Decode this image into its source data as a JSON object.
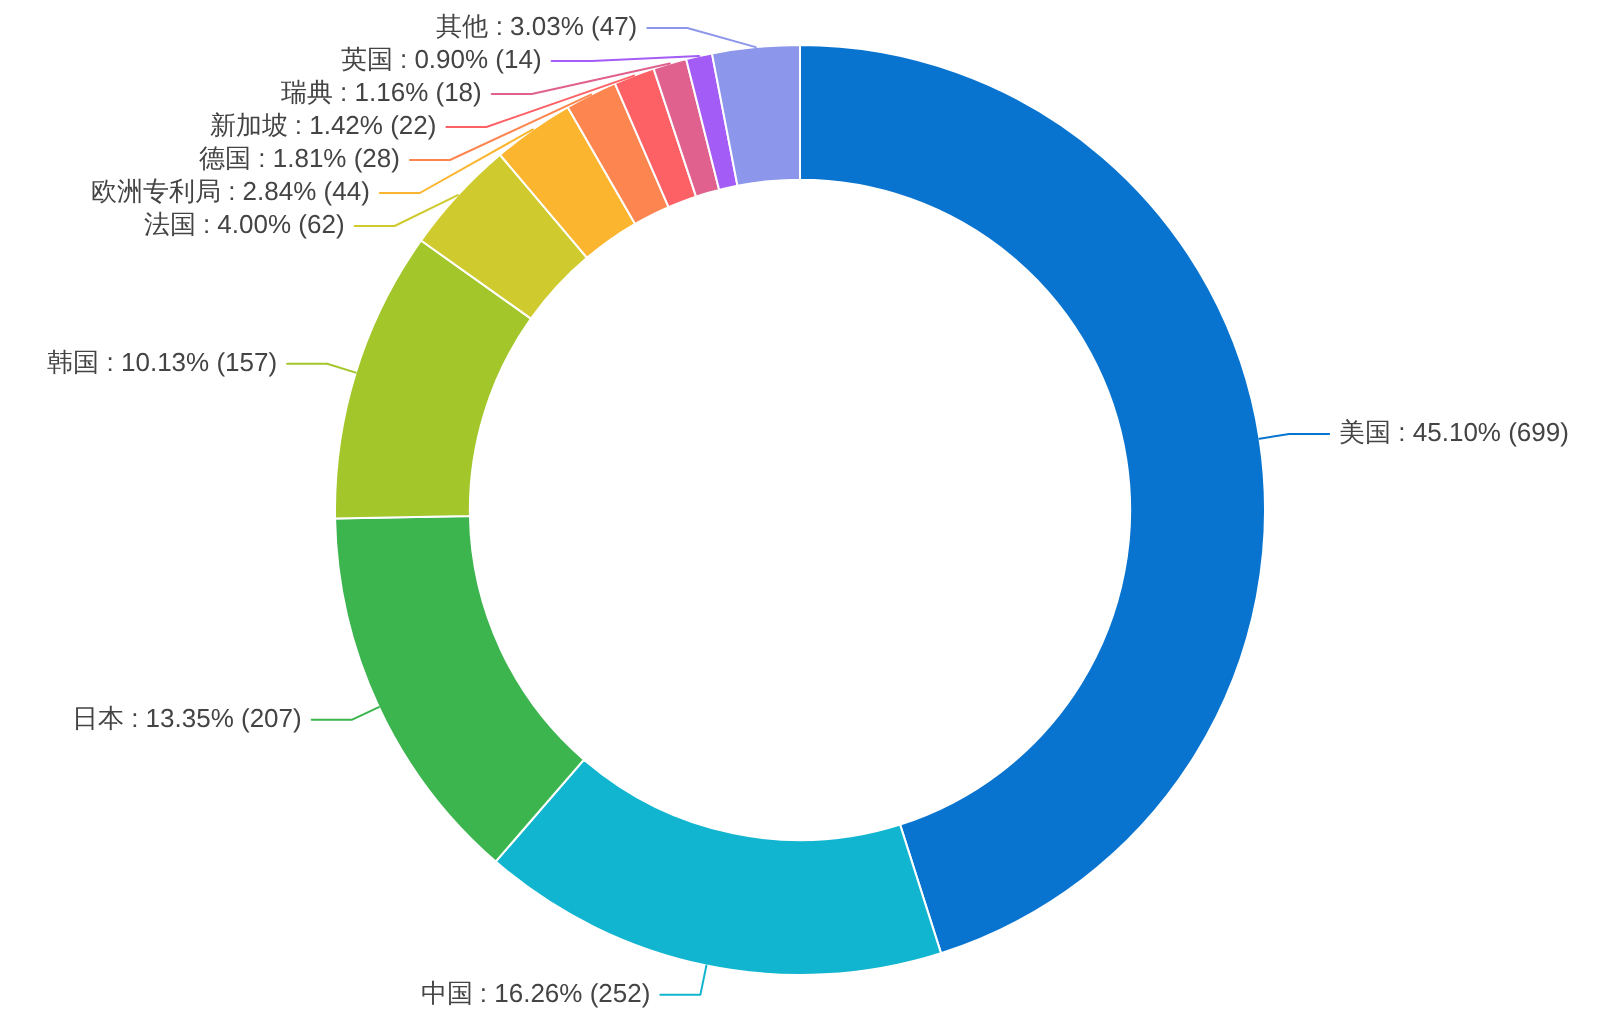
{
  "chart_data": {
    "type": "donut",
    "categories": [
      "美国",
      "中国",
      "日本",
      "韩国",
      "法国",
      "欧洲专利局",
      "德国",
      "新加坡",
      "瑞典",
      "英国",
      "其他"
    ],
    "values": [
      699,
      252,
      207,
      157,
      62,
      44,
      28,
      22,
      18,
      14,
      47
    ],
    "colors": [
      "#0874cf",
      "#12b5cf",
      "#3cb54e",
      "#a3c62a",
      "#cfcb2e",
      "#fbb52f",
      "#fd8650",
      "#fd6166",
      "#e0608e",
      "#a35cf6",
      "#8c96ea"
    ],
    "value_labels": [
      "45.10% (699)",
      "16.26% (252)",
      "13.35% (207)",
      "10.13% (157)",
      "4.00% (62)",
      "2.84% (44)",
      "1.81% (28)",
      "1.42% (22)",
      "1.16% (18)",
      "0.90% (14)",
      "3.03% (47)"
    ]
  }
}
